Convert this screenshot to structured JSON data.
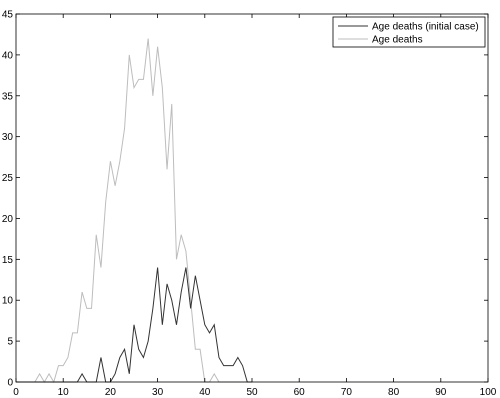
{
  "chart_data": {
    "type": "line",
    "title": "",
    "xlabel": "",
    "ylabel": "",
    "xlim": [
      0,
      100
    ],
    "ylim": [
      0,
      45
    ],
    "xticks": [
      0,
      10,
      20,
      30,
      40,
      50,
      60,
      70,
      80,
      90,
      100
    ],
    "yticks": [
      0,
      5,
      10,
      15,
      20,
      25,
      30,
      35,
      40,
      45
    ],
    "grid": false,
    "legend_position": "top-right",
    "series": [
      {
        "name": "Age deaths (initial case)",
        "color": "#333333",
        "x": [
          0,
          1,
          2,
          3,
          4,
          5,
          6,
          7,
          8,
          9,
          10,
          11,
          12,
          13,
          14,
          15,
          16,
          17,
          18,
          19,
          20,
          21,
          22,
          23,
          24,
          25,
          26,
          27,
          28,
          29,
          30,
          31,
          32,
          33,
          34,
          35,
          36,
          37,
          38,
          39,
          40,
          41,
          42,
          43,
          44,
          45,
          46,
          47,
          48,
          49,
          50
        ],
        "y": [
          0,
          0,
          0,
          0,
          0,
          0,
          0,
          0,
          0,
          0,
          0,
          0,
          0,
          0,
          1,
          0,
          0,
          0,
          3,
          0,
          0,
          1,
          3,
          4,
          1,
          7,
          4,
          3,
          5,
          9,
          14,
          7,
          12,
          10,
          7,
          11,
          14,
          9,
          13,
          10,
          7,
          6,
          7,
          3,
          2,
          2,
          2,
          3,
          2,
          0,
          0
        ]
      },
      {
        "name": "Age deaths",
        "color": "#bdbdbd",
        "x": [
          0,
          1,
          2,
          3,
          4,
          5,
          6,
          7,
          8,
          9,
          10,
          11,
          12,
          13,
          14,
          15,
          16,
          17,
          18,
          19,
          20,
          21,
          22,
          23,
          24,
          25,
          26,
          27,
          28,
          29,
          30,
          31,
          32,
          33,
          34,
          35,
          36,
          37,
          38,
          39,
          40,
          41,
          42,
          43,
          44,
          45,
          46,
          47,
          48,
          49,
          50
        ],
        "y": [
          0,
          0,
          0,
          0,
          0,
          1,
          0,
          1,
          0,
          2,
          2,
          3,
          6,
          6,
          11,
          9,
          9,
          18,
          14,
          22,
          27,
          24,
          27,
          31,
          40,
          36,
          37,
          37,
          42,
          35,
          41,
          36,
          26,
          34,
          15,
          18,
          16,
          10,
          4,
          4,
          0,
          0,
          1,
          0,
          0,
          0,
          0,
          0,
          0,
          0,
          0
        ]
      }
    ]
  }
}
